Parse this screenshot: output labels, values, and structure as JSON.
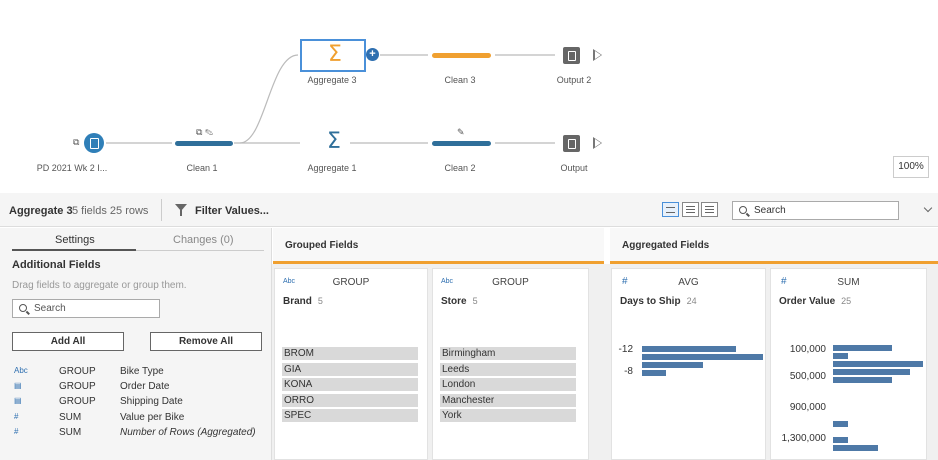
{
  "flow": {
    "nodes": {
      "input": "PD 2021 Wk 2 I...",
      "clean1": "Clean 1",
      "aggregate3": "Aggregate 3",
      "aggregate1": "Aggregate 1",
      "clean3": "Clean 3",
      "clean2": "Clean 2",
      "output2": "Output 2",
      "output": "Output"
    },
    "zoom": "100%",
    "colors": {
      "orange": "#f0a030",
      "blue": "#2f7fb8"
    }
  },
  "toolbar": {
    "step_name": "Aggregate 3",
    "meta": "5 fields  25 rows",
    "filter_label": "Filter Values...",
    "search_placeholder": "Search"
  },
  "settings": {
    "tab_settings": "Settings",
    "tab_changes": "Changes (0)",
    "additional_fields": "Additional Fields",
    "hint": "Drag fields to aggregate or group them.",
    "search_placeholder": "Search",
    "add_all": "Add All",
    "remove_all": "Remove All",
    "fields": [
      {
        "type": "Abc",
        "agg": "GROUP",
        "name": "Bike Type"
      },
      {
        "type": "date",
        "agg": "GROUP",
        "name": "Order Date"
      },
      {
        "type": "date",
        "agg": "GROUP",
        "name": "Shipping Date"
      },
      {
        "type": "#",
        "agg": "SUM",
        "name": "Value per Bike"
      },
      {
        "type": "#",
        "agg": "SUM",
        "name": "Number of Rows (Aggregated)"
      }
    ]
  },
  "grouped": {
    "title": "Grouped Fields",
    "cards": [
      {
        "type": "Abc",
        "agg": "GROUP",
        "name": "Brand",
        "count": "5",
        "values": [
          "BROM",
          "GIA",
          "KONA",
          "ORRO",
          "SPEC"
        ]
      },
      {
        "type": "Abc",
        "agg": "GROUP",
        "name": "Store",
        "count": "5",
        "values": [
          "Birmingham",
          "Leeds",
          "London",
          "Manchester",
          "York"
        ]
      }
    ]
  },
  "aggregated": {
    "title": "Aggregated Fields",
    "cards": [
      {
        "type": "#",
        "agg": "AVG",
        "name": "Days to Ship",
        "count": "24",
        "axis": [
          "-12",
          "-8"
        ],
        "bars": [
          0.78,
          1.0,
          0.5,
          0.2
        ]
      },
      {
        "type": "#",
        "agg": "SUM",
        "name": "Order Value",
        "count": "25",
        "axis": [
          "100,000",
          "500,000",
          "900,000",
          "1,300,000"
        ],
        "bars": [
          0.65,
          0.17,
          1.0,
          0.85,
          0.65,
          0.17,
          0.17,
          0.5
        ]
      }
    ]
  }
}
